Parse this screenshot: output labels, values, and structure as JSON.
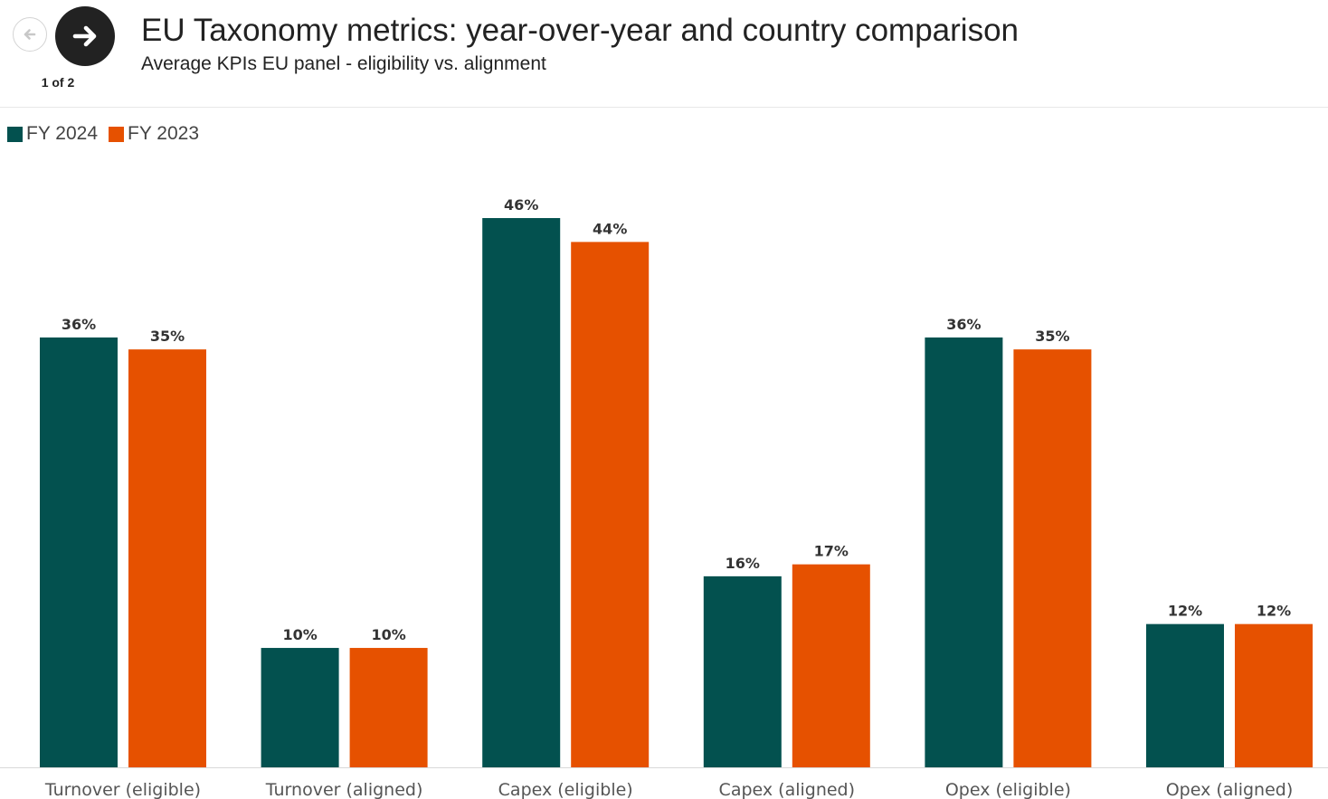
{
  "nav": {
    "back_icon": "arrow-left-icon",
    "next_icon": "arrow-right-icon",
    "pager": "1 of 2"
  },
  "header": {
    "title": "EU Taxonomy metrics: year-over-year and country comparison",
    "subtitle": "Average KPIs EU panel - eligibility vs. alignment"
  },
  "colors": {
    "fy2024": "#03514f",
    "fy2023": "#e65100"
  },
  "chart_data": {
    "type": "bar",
    "categories": [
      "Turnover (eligible)",
      "Turnover (aligned)",
      "Capex (eligible)",
      "Capex (aligned)",
      "Opex (eligible)",
      "Opex (aligned)"
    ],
    "series": [
      {
        "name": "FY 2024",
        "values": [
          36,
          10,
          46,
          16,
          36,
          12
        ],
        "labels": [
          "36%",
          "10%",
          "46%",
          "16%",
          "36%",
          "12%"
        ]
      },
      {
        "name": "FY 2023",
        "values": [
          35,
          10,
          44,
          17,
          35,
          12
        ],
        "labels": [
          "35%",
          "10%",
          "44%",
          "17%",
          "35%",
          "12%"
        ]
      }
    ],
    "ylim": [
      0,
      46
    ],
    "legend": "top-left",
    "grid": false
  }
}
